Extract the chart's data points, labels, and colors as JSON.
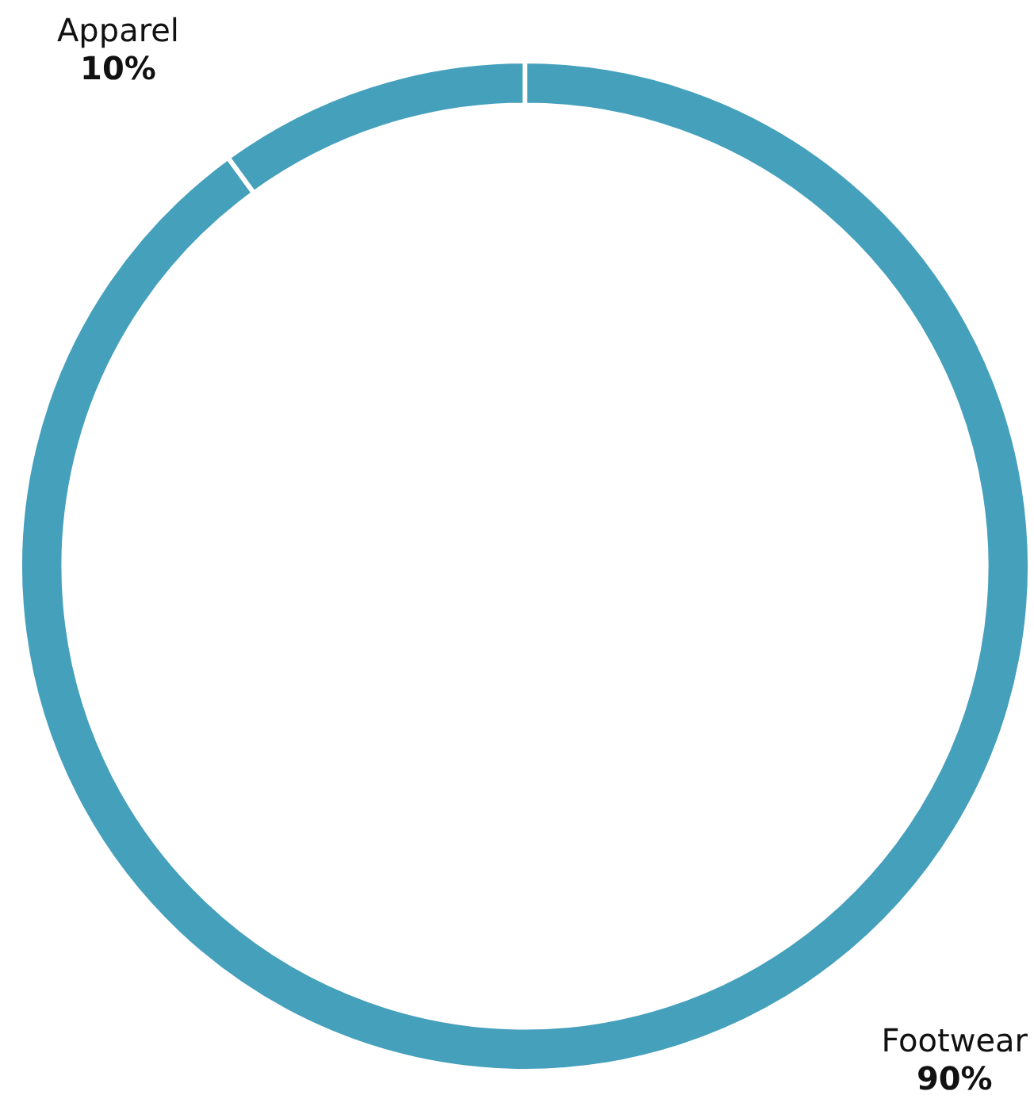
{
  "chart_data": {
    "type": "donut",
    "categories": [
      "Footwear",
      "Apparel"
    ],
    "values": [
      90,
      10
    ],
    "colors": [
      "#45a0bc",
      "#45a0bc"
    ],
    "value_labels": [
      "90%",
      "10%"
    ]
  }
}
